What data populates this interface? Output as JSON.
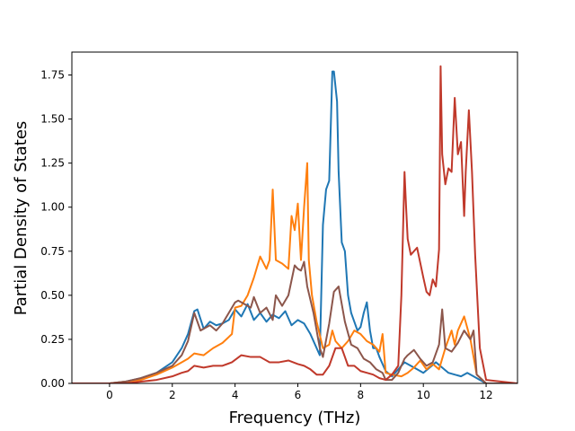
{
  "chart_data": {
    "type": "line",
    "title": "",
    "xlabel": "Frequency (THz)",
    "ylabel": "Partial Density of States",
    "xlim": [
      -1.2,
      13.0
    ],
    "ylim": [
      0.0,
      1.88
    ],
    "xticks": [
      0,
      2,
      4,
      6,
      8,
      10,
      12
    ],
    "yticks": [
      0.0,
      0.25,
      0.5,
      0.75,
      1.0,
      1.25,
      1.5,
      1.75
    ],
    "xtick_labels": [
      "0",
      "2",
      "4",
      "6",
      "8",
      "10",
      "12"
    ],
    "ytick_labels": [
      "0.00",
      "0.25",
      "0.50",
      "0.75",
      "1.00",
      "1.25",
      "1.50",
      "1.75"
    ],
    "grid": false,
    "legend": "none",
    "series": [
      {
        "color": "#1f77b4",
        "x": [
          -1.2,
          0.0,
          0.5,
          1.0,
          1.5,
          2.0,
          2.3,
          2.5,
          2.7,
          2.8,
          3.0,
          3.2,
          3.4,
          3.6,
          3.8,
          4.0,
          4.2,
          4.4,
          4.6,
          4.8,
          5.0,
          5.2,
          5.4,
          5.6,
          5.8,
          6.0,
          6.2,
          6.4,
          6.6,
          6.7,
          6.8,
          6.9,
          7.0,
          7.1,
          7.15,
          7.25,
          7.3,
          7.4,
          7.5,
          7.6,
          7.7,
          7.8,
          7.9,
          8.0,
          8.1,
          8.2,
          8.3,
          8.4,
          8.5,
          8.6,
          8.8,
          9.0,
          9.2,
          9.4,
          9.6,
          9.8,
          10.0,
          10.2,
          10.4,
          10.6,
          10.8,
          11.0,
          11.2,
          11.4,
          11.6,
          11.8,
          12.0,
          13.0
        ],
        "y": [
          0.0,
          0.0,
          0.01,
          0.03,
          0.06,
          0.12,
          0.2,
          0.28,
          0.41,
          0.42,
          0.31,
          0.35,
          0.33,
          0.34,
          0.36,
          0.42,
          0.38,
          0.45,
          0.36,
          0.4,
          0.35,
          0.39,
          0.37,
          0.41,
          0.33,
          0.36,
          0.34,
          0.28,
          0.2,
          0.16,
          0.9,
          1.1,
          1.15,
          1.77,
          1.77,
          1.6,
          1.2,
          0.8,
          0.75,
          0.5,
          0.4,
          0.35,
          0.3,
          0.32,
          0.4,
          0.46,
          0.3,
          0.2,
          0.2,
          0.15,
          0.07,
          0.04,
          0.08,
          0.12,
          0.1,
          0.08,
          0.06,
          0.09,
          0.12,
          0.09,
          0.06,
          0.05,
          0.04,
          0.06,
          0.04,
          0.02,
          0.0,
          0.0
        ]
      },
      {
        "color": "#ff7f0e",
        "x": [
          -1.2,
          0.0,
          0.5,
          1.0,
          1.5,
          2.0,
          2.3,
          2.5,
          2.7,
          3.0,
          3.3,
          3.6,
          3.9,
          4.0,
          4.2,
          4.4,
          4.6,
          4.8,
          5.0,
          5.1,
          5.2,
          5.3,
          5.5,
          5.7,
          5.8,
          5.9,
          6.0,
          6.1,
          6.2,
          6.3,
          6.35,
          6.45,
          6.6,
          6.8,
          7.0,
          7.1,
          7.2,
          7.4,
          7.6,
          7.8,
          8.0,
          8.2,
          8.4,
          8.6,
          8.7,
          8.8,
          9.0,
          9.3,
          9.5,
          9.7,
          9.9,
          10.1,
          10.3,
          10.5,
          10.7,
          10.9,
          11.0,
          11.1,
          11.3,
          11.5,
          11.7,
          12.0,
          13.0
        ],
        "y": [
          0.0,
          0.0,
          0.01,
          0.02,
          0.05,
          0.09,
          0.12,
          0.14,
          0.17,
          0.16,
          0.2,
          0.23,
          0.28,
          0.43,
          0.44,
          0.5,
          0.6,
          0.72,
          0.65,
          0.7,
          1.1,
          0.7,
          0.68,
          0.65,
          0.95,
          0.87,
          1.02,
          0.7,
          1.0,
          1.25,
          0.7,
          0.5,
          0.35,
          0.2,
          0.22,
          0.3,
          0.24,
          0.2,
          0.24,
          0.3,
          0.28,
          0.24,
          0.22,
          0.18,
          0.28,
          0.06,
          0.05,
          0.04,
          0.06,
          0.09,
          0.13,
          0.08,
          0.11,
          0.08,
          0.2,
          0.3,
          0.22,
          0.3,
          0.38,
          0.25,
          0.05,
          0.0,
          0.0
        ]
      },
      {
        "color": "#8c564b",
        "x": [
          -1.2,
          0.0,
          0.5,
          1.0,
          1.5,
          2.0,
          2.3,
          2.5,
          2.7,
          2.9,
          3.0,
          3.2,
          3.4,
          3.6,
          3.8,
          4.0,
          4.1,
          4.3,
          4.5,
          4.6,
          4.8,
          5.0,
          5.2,
          5.3,
          5.5,
          5.7,
          5.9,
          6.0,
          6.1,
          6.2,
          6.3,
          6.5,
          6.7,
          6.8,
          7.0,
          7.15,
          7.3,
          7.5,
          7.7,
          7.9,
          8.1,
          8.3,
          8.5,
          8.7,
          8.8,
          9.0,
          9.2,
          9.3,
          9.4,
          9.5,
          9.7,
          9.9,
          10.1,
          10.3,
          10.5,
          10.6,
          10.7,
          10.9,
          11.1,
          11.3,
          11.5,
          11.6,
          11.7,
          12.0,
          13.0
        ],
        "y": [
          0.0,
          0.0,
          0.01,
          0.03,
          0.06,
          0.1,
          0.16,
          0.24,
          0.4,
          0.3,
          0.31,
          0.33,
          0.3,
          0.34,
          0.4,
          0.46,
          0.47,
          0.45,
          0.43,
          0.49,
          0.4,
          0.43,
          0.36,
          0.5,
          0.44,
          0.5,
          0.67,
          0.65,
          0.64,
          0.69,
          0.55,
          0.4,
          0.2,
          0.15,
          0.34,
          0.52,
          0.55,
          0.35,
          0.22,
          0.2,
          0.14,
          0.12,
          0.08,
          0.06,
          0.02,
          0.02,
          0.06,
          0.1,
          0.14,
          0.16,
          0.19,
          0.14,
          0.1,
          0.12,
          0.22,
          0.42,
          0.2,
          0.18,
          0.23,
          0.3,
          0.25,
          0.3,
          0.05,
          0.0,
          0.0
        ]
      },
      {
        "color": "#c0392b",
        "x": [
          -1.2,
          0.0,
          0.5,
          1.0,
          1.5,
          2.0,
          2.3,
          2.5,
          2.7,
          3.0,
          3.3,
          3.6,
          3.9,
          4.2,
          4.5,
          4.8,
          5.1,
          5.4,
          5.7,
          6.0,
          6.2,
          6.4,
          6.6,
          6.8,
          7.0,
          7.2,
          7.4,
          7.6,
          7.8,
          8.0,
          8.2,
          8.4,
          8.6,
          8.8,
          9.0,
          9.2,
          9.3,
          9.4,
          9.45,
          9.5,
          9.6,
          9.8,
          10.0,
          10.1,
          10.2,
          10.3,
          10.4,
          10.5,
          10.55,
          10.6,
          10.7,
          10.8,
          10.9,
          11.0,
          11.1,
          11.2,
          11.3,
          11.35,
          11.45,
          11.55,
          11.65,
          11.8,
          12.0,
          13.0
        ],
        "y": [
          0.0,
          0.0,
          0.0,
          0.01,
          0.02,
          0.04,
          0.06,
          0.07,
          0.1,
          0.09,
          0.1,
          0.1,
          0.12,
          0.16,
          0.15,
          0.15,
          0.12,
          0.12,
          0.13,
          0.11,
          0.1,
          0.08,
          0.05,
          0.05,
          0.1,
          0.2,
          0.2,
          0.1,
          0.1,
          0.07,
          0.06,
          0.05,
          0.03,
          0.02,
          0.05,
          0.1,
          0.5,
          1.2,
          1.0,
          0.82,
          0.73,
          0.77,
          0.6,
          0.52,
          0.5,
          0.59,
          0.55,
          0.76,
          1.8,
          1.3,
          1.13,
          1.22,
          1.2,
          1.62,
          1.3,
          1.37,
          0.95,
          1.2,
          1.55,
          1.2,
          0.73,
          0.2,
          0.02,
          0.0
        ]
      }
    ]
  }
}
